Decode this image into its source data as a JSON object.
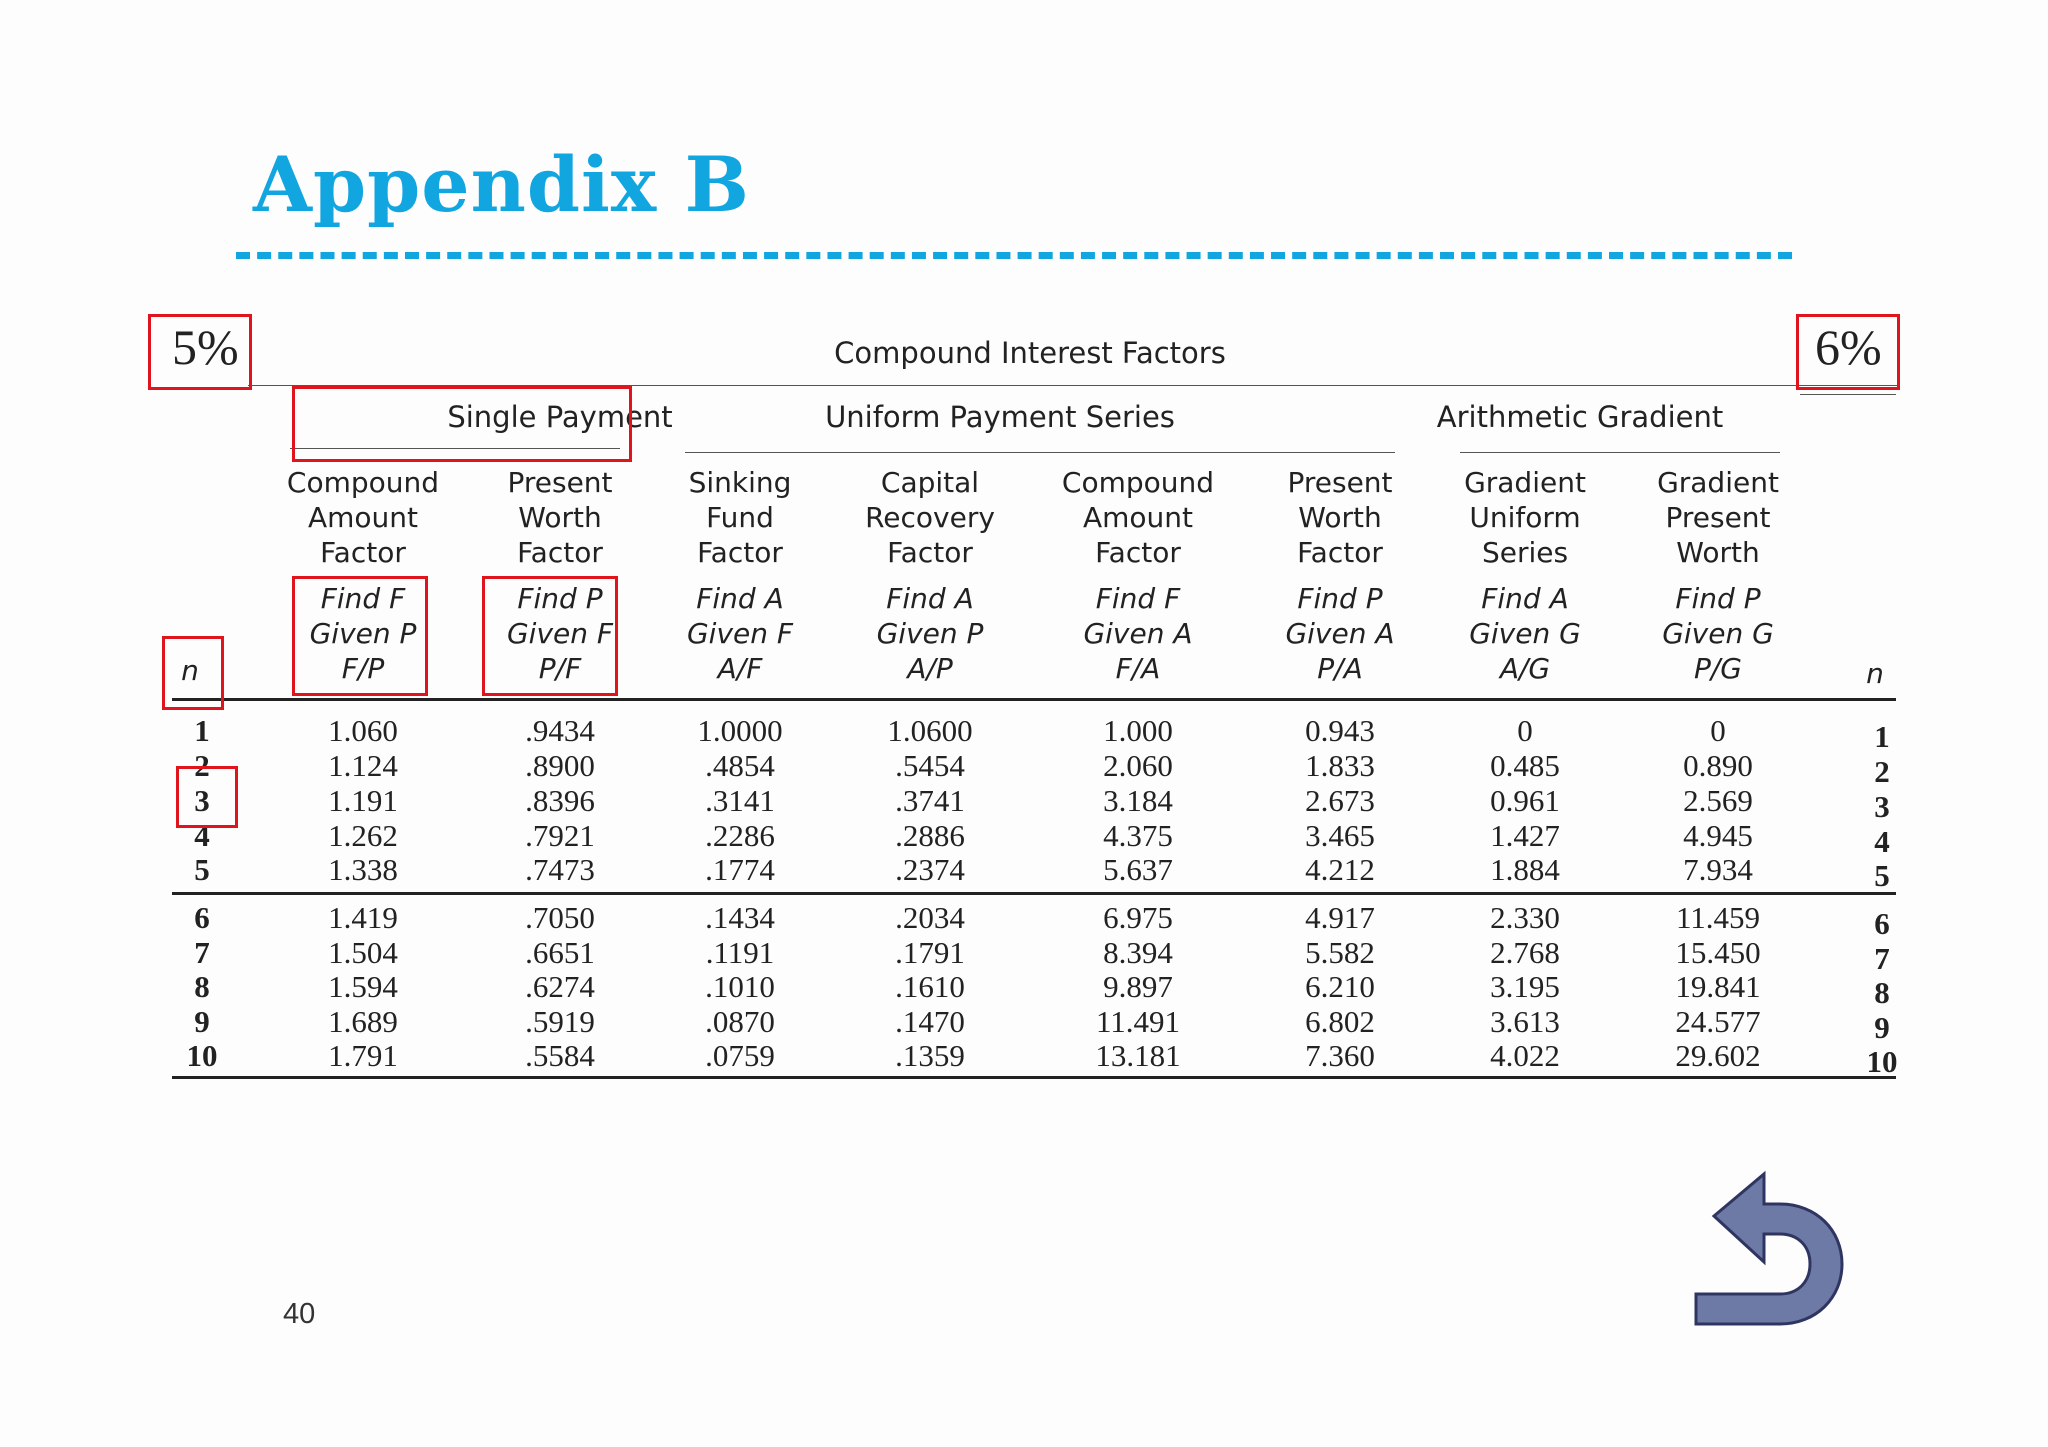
{
  "slide": {
    "title": "Appendix B",
    "page_number": "40"
  },
  "table": {
    "caption": "Compound Interest Factors",
    "rate_left": "5%",
    "rate_right": "6%",
    "groups": [
      "Single Payment",
      "Uniform Payment Series",
      "Arithmetic Gradient"
    ],
    "n_label": "n",
    "columns": [
      {
        "name_lines": [
          "Compound",
          "Amount",
          "Factor"
        ],
        "find_line": "Find F",
        "given_line": "Given P",
        "symbol": "F/P"
      },
      {
        "name_lines": [
          "Present",
          "Worth",
          "Factor"
        ],
        "find_line": "Find P",
        "given_line": "Given F",
        "symbol": "P/F"
      },
      {
        "name_lines": [
          "Sinking",
          "Fund",
          "Factor"
        ],
        "find_line": "Find A",
        "given_line": "Given F",
        "symbol": "A/F"
      },
      {
        "name_lines": [
          "Capital",
          "Recovery",
          "Factor"
        ],
        "find_line": "Find A",
        "given_line": "Given P",
        "symbol": "A/P"
      },
      {
        "name_lines": [
          "Compound",
          "Amount",
          "Factor"
        ],
        "find_line": "Find F",
        "given_line": "Given A",
        "symbol": "F/A"
      },
      {
        "name_lines": [
          "Present",
          "Worth",
          "Factor"
        ],
        "find_line": "Find P",
        "given_line": "Given A",
        "symbol": "P/A"
      },
      {
        "name_lines": [
          "Gradient",
          "Uniform",
          "Series"
        ],
        "find_line": "Find A",
        "given_line": "Given G",
        "symbol": "A/G"
      },
      {
        "name_lines": [
          "Gradient",
          "Present",
          "Worth"
        ],
        "find_line": "Find P",
        "given_line": "Given G",
        "symbol": "P/G"
      }
    ],
    "rows": [
      {
        "n": "1",
        "values": [
          "1.060",
          ".9434",
          "1.0000",
          "1.0600",
          "1.000",
          "0.943",
          "0",
          "0"
        ]
      },
      {
        "n": "2",
        "values": [
          "1.124",
          ".8900",
          ".4854",
          ".5454",
          "2.060",
          "1.833",
          "0.485",
          "0.890"
        ]
      },
      {
        "n": "3",
        "values": [
          "1.191",
          ".8396",
          ".3141",
          ".3741",
          "3.184",
          "2.673",
          "0.961",
          "2.569"
        ]
      },
      {
        "n": "4",
        "values": [
          "1.262",
          ".7921",
          ".2286",
          ".2886",
          "4.375",
          "3.465",
          "1.427",
          "4.945"
        ]
      },
      {
        "n": "5",
        "values": [
          "1.338",
          ".7473",
          ".1774",
          ".2374",
          "5.637",
          "4.212",
          "1.884",
          "7.934"
        ]
      },
      {
        "n": "6",
        "values": [
          "1.419",
          ".7050",
          ".1434",
          ".2034",
          "6.975",
          "4.917",
          "2.330",
          "11.459"
        ]
      },
      {
        "n": "7",
        "values": [
          "1.504",
          ".6651",
          ".1191",
          ".1791",
          "8.394",
          "5.582",
          "2.768",
          "15.450"
        ]
      },
      {
        "n": "8",
        "values": [
          "1.594",
          ".6274",
          ".1010",
          ".1610",
          "9.897",
          "6.210",
          "3.195",
          "19.841"
        ]
      },
      {
        "n": "9",
        "values": [
          "1.689",
          ".5919",
          ".0870",
          ".1470",
          "11.491",
          "6.802",
          "3.613",
          "24.577"
        ]
      },
      {
        "n": "10",
        "values": [
          "1.791",
          ".5584",
          ".0759",
          ".1359",
          "13.181",
          "7.360",
          "4.022",
          "29.602"
        ]
      }
    ]
  },
  "back_button": {
    "icon": "return-arrow-icon",
    "color": "#6e7aa6"
  },
  "colors": {
    "title": "#12a6e0",
    "highlight": "#e0141c"
  }
}
